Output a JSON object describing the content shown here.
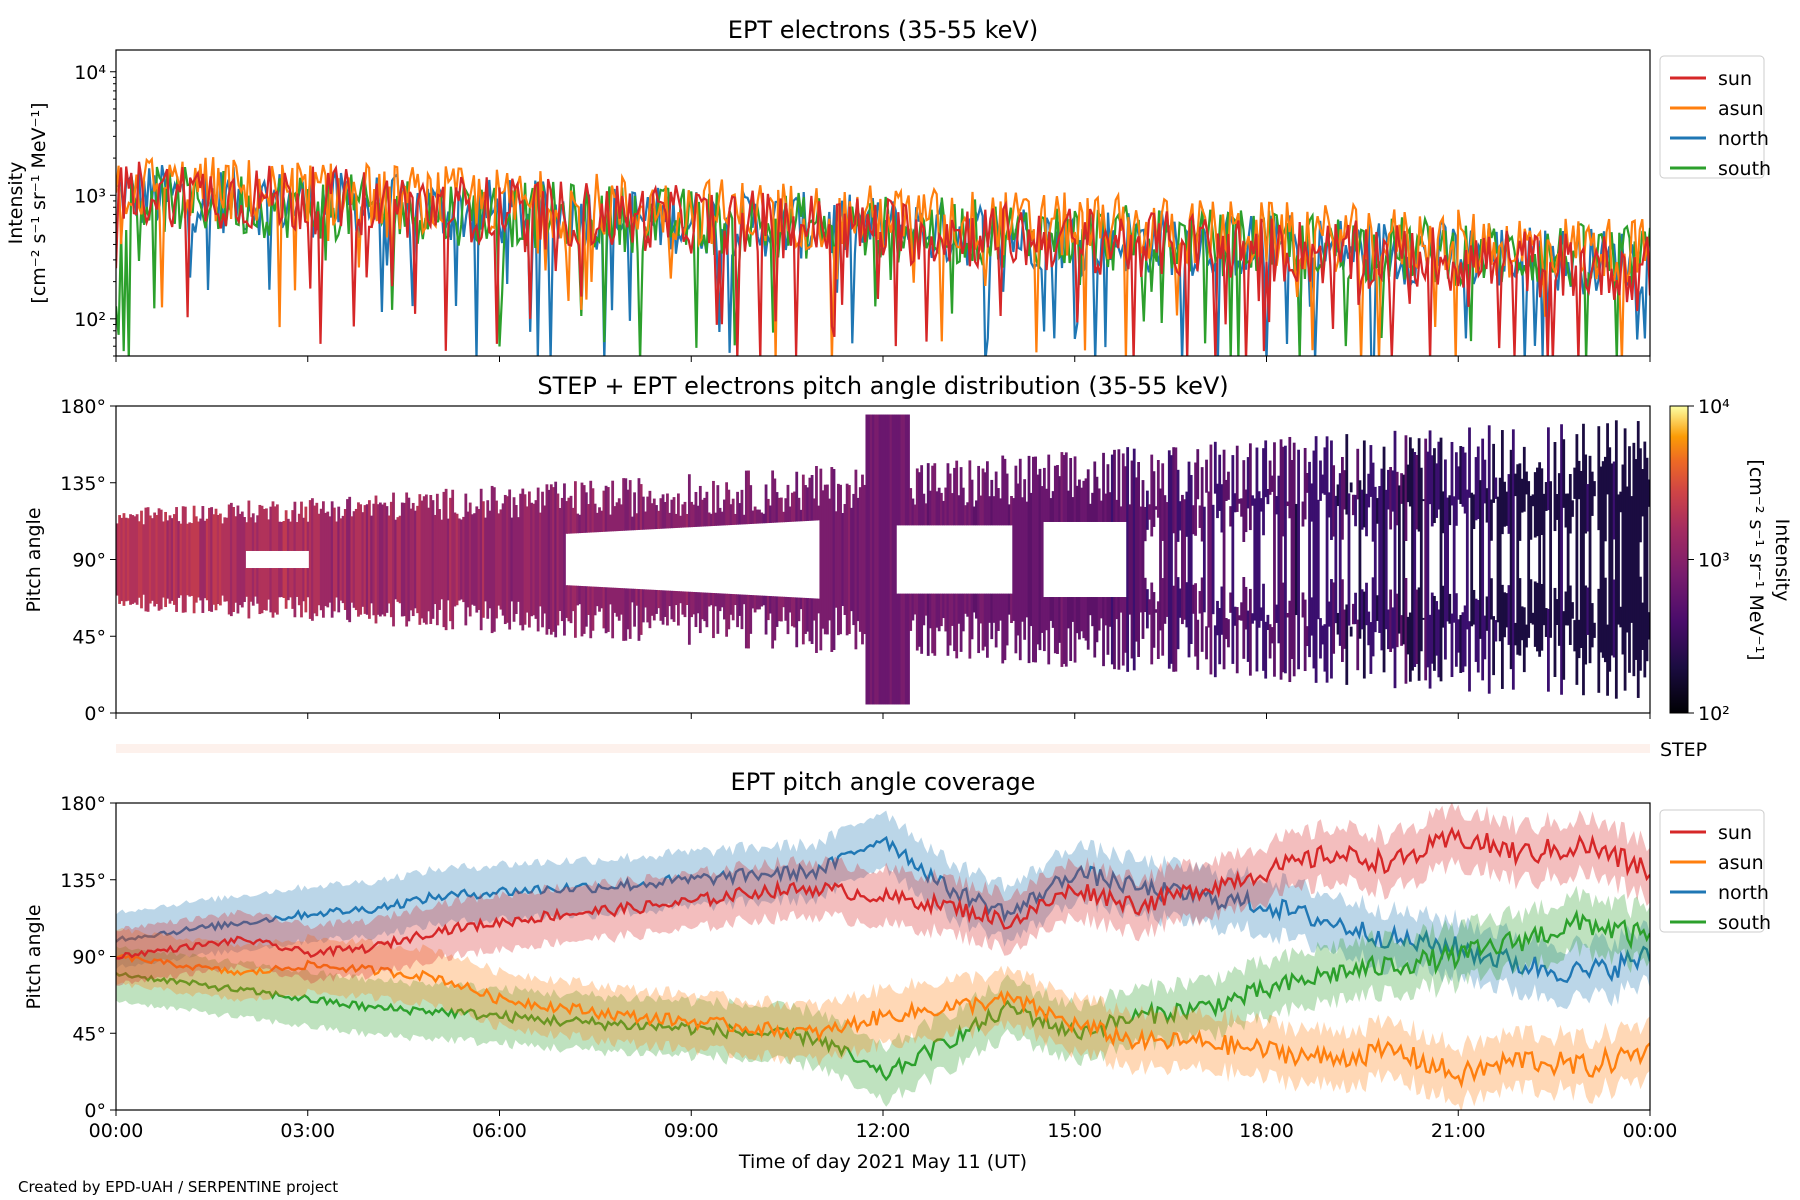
{
  "footer": "Created by EPD-UAH / SERPENTINE project",
  "xlabel": "Time of day 2021 May 11 (UT)",
  "x_ticks": [
    "00:00",
    "03:00",
    "06:00",
    "09:00",
    "12:00",
    "15:00",
    "18:00",
    "21:00",
    "00:00"
  ],
  "colors": {
    "sun": "#d62728",
    "asun": "#ff7f0e",
    "north": "#1f77b4",
    "south": "#2ca02c"
  },
  "chart_data": [
    {
      "type": "line",
      "title": "EPT electrons (35-55 keV)",
      "ylabel_1": "Intensity",
      "ylabel_2": "[cm⁻² s⁻¹ sr⁻¹ MeV⁻¹]",
      "yscale": "log",
      "ylim": [
        50,
        15000
      ],
      "y_ticks": [
        {
          "v": 100,
          "label": "10²"
        },
        {
          "v": 1000,
          "label": "10³"
        },
        {
          "v": 10000,
          "label": "10⁴"
        }
      ],
      "xlim_hours": [
        0,
        24
      ],
      "legend": "outside-right",
      "series": [
        {
          "name": "sun",
          "color": "#d62728",
          "trend_start": 1100,
          "trend_end": 250
        },
        {
          "name": "asun",
          "color": "#ff7f0e",
          "trend_start": 1200,
          "trend_end": 350
        },
        {
          "name": "north",
          "color": "#1f77b4",
          "trend_start": 1000,
          "trend_end": 280
        },
        {
          "name": "south",
          "color": "#2ca02c",
          "trend_start": 950,
          "trend_end": 300
        }
      ]
    },
    {
      "type": "heatmap",
      "title": "STEP + EPT electrons pitch angle distribution (35-55 keV)",
      "ylabel": "Pitch angle",
      "ylim": [
        0,
        180
      ],
      "y_ticks": [
        "0°",
        "45°",
        "90°",
        "135°",
        "180°"
      ],
      "colorbar_label_1": "Intensity",
      "colorbar_label_2": "[cm⁻² s⁻¹ sr⁻¹ MeV⁻¹]",
      "colorbar_ticks": [
        "10²",
        "10³",
        "10⁴"
      ],
      "colorbar_range": [
        100,
        10000
      ],
      "colormap": "inferno",
      "step_label": "STEP"
    },
    {
      "type": "line",
      "title": "EPT pitch angle coverage",
      "ylabel": "Pitch angle",
      "ylim": [
        0,
        180
      ],
      "y_ticks": [
        "0°",
        "45°",
        "90°",
        "135°",
        "180°"
      ],
      "legend": "outside-right",
      "series": [
        {
          "name": "sun",
          "color": "#d62728",
          "hours": [
            0,
            1,
            2,
            3,
            4,
            5,
            6,
            7,
            8,
            9,
            10,
            11,
            12,
            13,
            14,
            15,
            16,
            17,
            18,
            19,
            20,
            21,
            22,
            23,
            24
          ],
          "values": [
            90,
            95,
            100,
            92,
            95,
            105,
            110,
            115,
            118,
            122,
            128,
            130,
            125,
            120,
            110,
            130,
            120,
            130,
            140,
            150,
            145,
            160,
            150,
            155,
            140
          ]
        },
        {
          "name": "asun",
          "color": "#ff7f0e",
          "hours": [
            0,
            1,
            2,
            3,
            4,
            5,
            6,
            7,
            8,
            9,
            10,
            11,
            12,
            13,
            14,
            15,
            16,
            17,
            18,
            19,
            20,
            21,
            22,
            23,
            24
          ],
          "values": [
            90,
            85,
            80,
            85,
            82,
            78,
            65,
            60,
            55,
            52,
            48,
            45,
            55,
            60,
            65,
            50,
            40,
            40,
            35,
            30,
            35,
            20,
            30,
            25,
            35
          ]
        },
        {
          "name": "north",
          "color": "#1f77b4",
          "hours": [
            0,
            1,
            2,
            3,
            4,
            5,
            6,
            7,
            8,
            9,
            10,
            11,
            12,
            13,
            14,
            15,
            16,
            17,
            18,
            19,
            20,
            21,
            22,
            23,
            24
          ],
          "values": [
            100,
            105,
            110,
            115,
            118,
            125,
            128,
            130,
            132,
            135,
            138,
            140,
            160,
            130,
            115,
            140,
            130,
            125,
            120,
            110,
            100,
            95,
            85,
            80,
            90
          ]
        },
        {
          "name": "south",
          "color": "#2ca02c",
          "hours": [
            0,
            1,
            2,
            3,
            4,
            5,
            6,
            7,
            8,
            9,
            10,
            11,
            12,
            13,
            14,
            15,
            16,
            17,
            18,
            19,
            20,
            21,
            22,
            23,
            24
          ],
          "values": [
            80,
            75,
            70,
            65,
            60,
            58,
            55,
            52,
            50,
            48,
            45,
            42,
            20,
            40,
            60,
            45,
            55,
            60,
            70,
            80,
            85,
            90,
            100,
            110,
            100
          ]
        }
      ]
    }
  ]
}
